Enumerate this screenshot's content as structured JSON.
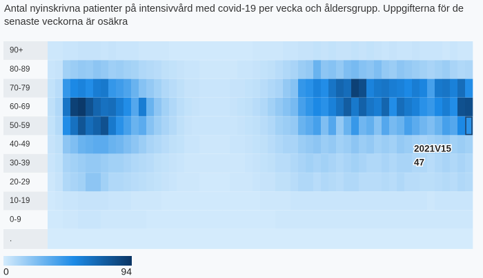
{
  "chart_data": {
    "type": "heatmap",
    "title": "Antal nyinskrivna patienter på intensivvård med covid-19 per vecka och åldersgrupp. Uppgifterna för de senaste veckorna är osäkra",
    "x": [
      null,
      null,
      null,
      null,
      null,
      null,
      null,
      null,
      null,
      null,
      null,
      null,
      null,
      null,
      null,
      null,
      null,
      null,
      null,
      null,
      null,
      null,
      null,
      null,
      null,
      null,
      null,
      null,
      null,
      null,
      null,
      null,
      null,
      null,
      null,
      null,
      null,
      null,
      null,
      null,
      null,
      null,
      null,
      null,
      null,
      null,
      null,
      null,
      null,
      null,
      null,
      null,
      null,
      null,
      null,
      null
    ],
    "series": [
      {
        "name": "90+",
        "values": [
          2,
          2,
          3,
          3,
          4,
          4,
          4,
          3,
          4,
          3,
          3,
          3,
          2,
          2,
          2,
          2,
          1,
          1,
          1,
          1,
          1,
          1,
          1,
          1,
          1,
          1,
          1,
          2,
          2,
          2,
          2,
          3,
          3,
          4,
          4,
          5,
          4,
          5,
          4,
          4,
          5,
          4,
          5,
          4,
          3,
          4,
          3,
          3,
          4,
          3,
          3,
          3,
          2,
          3,
          2,
          2
        ]
      },
      {
        "name": "80-89",
        "values": [
          3,
          4,
          14,
          16,
          18,
          17,
          20,
          18,
          15,
          16,
          14,
          13,
          10,
          9,
          8,
          6,
          5,
          4,
          3,
          3,
          2,
          2,
          2,
          2,
          2,
          3,
          3,
          4,
          5,
          6,
          8,
          10,
          12,
          16,
          18,
          30,
          20,
          22,
          18,
          24,
          26,
          22,
          20,
          24,
          18,
          16,
          20,
          18,
          16,
          14,
          12,
          14,
          16,
          12,
          10,
          11
        ]
      },
      {
        "name": "70-79",
        "values": [
          5,
          8,
          45,
          52,
          55,
          50,
          58,
          60,
          45,
          42,
          38,
          30,
          22,
          18,
          14,
          10,
          8,
          6,
          4,
          4,
          3,
          3,
          3,
          3,
          4,
          4,
          5,
          6,
          8,
          10,
          12,
          18,
          22,
          45,
          48,
          55,
          50,
          62,
          70,
          66,
          88,
          82,
          55,
          60,
          62,
          58,
          56,
          52,
          58,
          54,
          40,
          60,
          62,
          56,
          66,
          50
        ]
      },
      {
        "name": "60-69",
        "values": [
          6,
          10,
          62,
          88,
          92,
          80,
          70,
          64,
          66,
          58,
          50,
          36,
          58,
          30,
          20,
          14,
          10,
          7,
          5,
          4,
          3,
          3,
          3,
          3,
          4,
          5,
          6,
          8,
          10,
          14,
          18,
          22,
          26,
          40,
          46,
          52,
          48,
          56,
          64,
          74,
          60,
          72,
          62,
          58,
          70,
          50,
          66,
          60,
          56,
          48,
          44,
          52,
          58,
          50,
          80,
          82
        ]
      },
      {
        "name": "50-59",
        "values": [
          5,
          9,
          50,
          64,
          78,
          66,
          72,
          80,
          60,
          48,
          40,
          30,
          34,
          22,
          16,
          12,
          9,
          6,
          4,
          3,
          3,
          3,
          3,
          3,
          3,
          4,
          5,
          6,
          8,
          10,
          14,
          16,
          18,
          30,
          34,
          40,
          24,
          36,
          18,
          30,
          44,
          28,
          32,
          22,
          36,
          26,
          30,
          40,
          34,
          28,
          24,
          30,
          40,
          36,
          52,
          47
        ]
      },
      {
        "name": "40-49",
        "values": [
          4,
          6,
          20,
          24,
          30,
          32,
          34,
          34,
          30,
          28,
          24,
          20,
          16,
          12,
          10,
          8,
          6,
          5,
          3,
          3,
          2,
          2,
          2,
          2,
          3,
          3,
          4,
          5,
          6,
          8,
          10,
          12,
          12,
          16,
          18,
          20,
          16,
          18,
          14,
          16,
          20,
          16,
          18,
          14,
          16,
          14,
          18,
          16,
          14,
          12,
          14,
          16,
          18,
          14,
          16,
          14
        ]
      },
      {
        "name": "30-39",
        "values": [
          3,
          5,
          12,
          14,
          16,
          18,
          18,
          16,
          14,
          14,
          12,
          10,
          9,
          8,
          6,
          5,
          4,
          3,
          2,
          2,
          2,
          2,
          2,
          2,
          2,
          2,
          3,
          4,
          5,
          6,
          8,
          8,
          10,
          12,
          14,
          12,
          14,
          12,
          10,
          12,
          14,
          12,
          10,
          10,
          12,
          10,
          12,
          12,
          10,
          10,
          8,
          10,
          12,
          10,
          12,
          10
        ]
      },
      {
        "name": "20-29",
        "values": [
          2,
          4,
          10,
          12,
          14,
          20,
          20,
          14,
          10,
          10,
          9,
          8,
          7,
          6,
          5,
          4,
          3,
          2,
          2,
          2,
          1,
          1,
          1,
          1,
          2,
          2,
          2,
          3,
          4,
          4,
          6,
          6,
          8,
          10,
          10,
          8,
          10,
          9,
          8,
          10,
          10,
          8,
          8,
          8,
          9,
          8,
          10,
          8,
          8,
          7,
          7,
          8,
          9,
          8,
          10,
          9
        ]
      },
      {
        "name": "10-19",
        "values": [
          1,
          2,
          3,
          3,
          4,
          4,
          4,
          4,
          3,
          3,
          3,
          2,
          2,
          2,
          2,
          1,
          1,
          1,
          1,
          1,
          1,
          1,
          1,
          1,
          1,
          1,
          1,
          1,
          2,
          2,
          2,
          2,
          3,
          3,
          3,
          3,
          3,
          3,
          3,
          3,
          3,
          3,
          3,
          3,
          3,
          3,
          3,
          3,
          3,
          3,
          2,
          3,
          3,
          3,
          3,
          3
        ]
      },
      {
        "name": "0-9",
        "values": [
          1,
          1,
          2,
          2,
          3,
          3,
          3,
          2,
          2,
          2,
          2,
          2,
          2,
          1,
          1,
          1,
          1,
          1,
          1,
          1,
          1,
          1,
          1,
          1,
          1,
          1,
          1,
          1,
          1,
          1,
          2,
          2,
          2,
          2,
          2,
          2,
          2,
          2,
          2,
          2,
          2,
          2,
          2,
          2,
          2,
          2,
          2,
          2,
          2,
          2,
          2,
          2,
          2,
          2,
          2,
          2
        ]
      },
      {
        "name": ".",
        "values": [
          0,
          0,
          0,
          0,
          0,
          0,
          0,
          0,
          0,
          0,
          0,
          0,
          0,
          0,
          0,
          0,
          0,
          0,
          0,
          0,
          0,
          0,
          0,
          0,
          0,
          0,
          0,
          0,
          0,
          0,
          0,
          0,
          0,
          0,
          0,
          0,
          0,
          0,
          0,
          0,
          0,
          0,
          0,
          0,
          0,
          0,
          0,
          0,
          0,
          0,
          0,
          0,
          0,
          0,
          0,
          0
        ]
      }
    ],
    "zlim": [
      0,
      94
    ],
    "colorscale": [
      [
        0,
        "#d4ebfc"
      ],
      [
        0.55,
        "#1c8ae6"
      ],
      [
        1,
        "#0a3564"
      ]
    ],
    "annotations": [
      {
        "text": "2021V15"
      }
    ]
  }
}
